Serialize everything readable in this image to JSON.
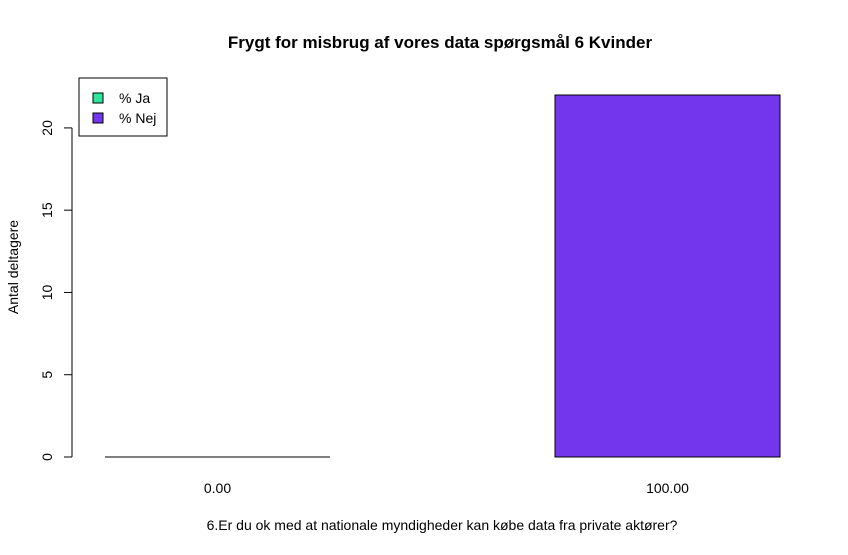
{
  "chart_data": {
    "type": "bar",
    "title": "Frygt for misbrug af vores data spørgsmål 6 Kvinder",
    "xlabel": "6.Er du ok med at nationale myndigheder kan købe data fra private aktører?",
    "ylabel": "Antal deltagere",
    "categories": [
      "0.00",
      "100.00"
    ],
    "series": [
      {
        "name": "% Ja",
        "color": "#2ee39a",
        "values": [
          0,
          0
        ]
      },
      {
        "name": "% Nej",
        "color": "#7336ec",
        "values": [
          0,
          22
        ]
      }
    ],
    "ylim": [
      0,
      22
    ],
    "yticks": [
      0,
      5,
      10,
      15,
      20
    ],
    "grid": false,
    "legend_position": "top-left"
  }
}
